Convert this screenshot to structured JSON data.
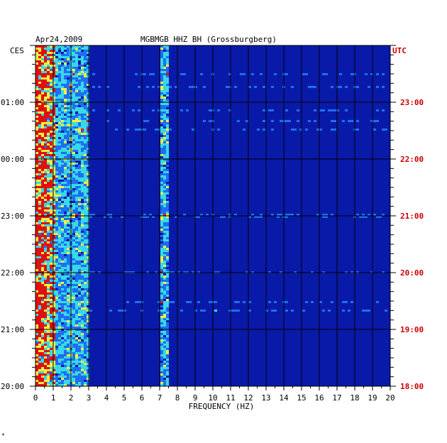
{
  "header": {
    "date": "Apr24,2009",
    "station": "MGBMGB HHZ BH (Grossburgberg)",
    "left_zone": "CES",
    "right_zone": "UTC"
  },
  "colors": {
    "background_spec": "#0a1aa8",
    "grid": "#000000",
    "utc_labels": "#cc0000",
    "low": "#0a1aa8",
    "mid": "#1e6ef0",
    "cyan": "#38d8e8",
    "yellow": "#f0f040",
    "high": "#e01010"
  },
  "chart_data": {
    "type": "heatmap",
    "title": "MGBMGB HHZ BH (Grossburgberg)",
    "date": "Apr24,2009",
    "xlabel": "FREQUENCY (HZ)",
    "xlim": [
      0,
      20
    ],
    "x_ticks": [
      "0",
      "1",
      "2",
      "3",
      "4",
      "5",
      "6",
      "7",
      "8",
      "9",
      "10",
      "11",
      "12",
      "13",
      "14",
      "15",
      "16",
      "17",
      "18",
      "19",
      "20"
    ],
    "y_left_label": "CES",
    "y_left_ticks": [
      "01:00",
      "00:00",
      "23:00",
      "22:00",
      "21:00",
      "20:00"
    ],
    "y_right_label": "UTC",
    "y_right_ticks": [
      "23:00",
      "22:00",
      "21:00",
      "20:00",
      "19:00",
      "18:00"
    ],
    "time_span_hours": 6,
    "energy_bands_hz": [
      {
        "from": 0,
        "to": 1,
        "level": "high"
      },
      {
        "from": 1,
        "to": 3,
        "level": "moderate"
      },
      {
        "from": 7,
        "to": 7.5,
        "level": "moderate"
      }
    ]
  },
  "footer_mark": "*"
}
